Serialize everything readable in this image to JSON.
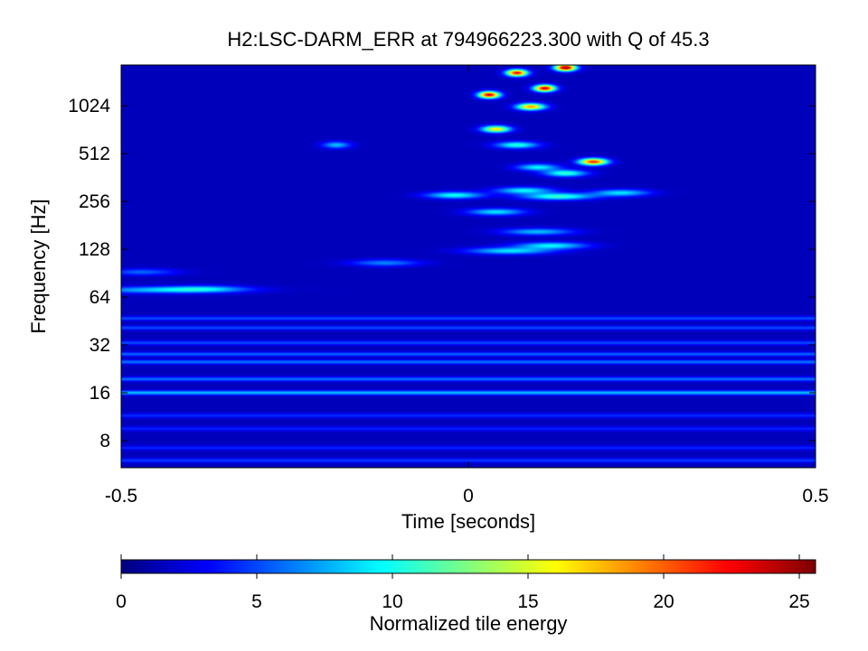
{
  "chart_data": {
    "type": "heatmap",
    "title": "H2:LSC-DARM_ERR at 794966223.300 with Q of 45.3",
    "xlabel": "Time [seconds]",
    "ylabel": "Frequency [Hz]",
    "x_ticks": [
      {
        "value": -0.5,
        "label": "-0.5"
      },
      {
        "value": 0,
        "label": "0"
      },
      {
        "value": 0.5,
        "label": "0.5"
      }
    ],
    "xlim": [
      -0.5,
      0.5
    ],
    "y_scale": "log2",
    "y_ticks": [
      {
        "value": 8,
        "label": "8"
      },
      {
        "value": 16,
        "label": "16"
      },
      {
        "value": 32,
        "label": "32"
      },
      {
        "value": 64,
        "label": "64"
      },
      {
        "value": 128,
        "label": "128"
      },
      {
        "value": 256,
        "label": "256"
      },
      {
        "value": 512,
        "label": "512"
      },
      {
        "value": 1024,
        "label": "1024"
      }
    ],
    "ylim": [
      5.4,
      1850
    ],
    "colorbar": {
      "label": "Normalized tile energy",
      "colormap": "jet",
      "range": [
        0,
        25.6
      ],
      "ticks": [
        {
          "value": 0,
          "label": "0"
        },
        {
          "value": 5,
          "label": "5"
        },
        {
          "value": 10,
          "label": "10"
        },
        {
          "value": 15,
          "label": "15"
        },
        {
          "value": 20,
          "label": "20"
        },
        {
          "value": 25,
          "label": "25"
        }
      ]
    },
    "background_energy": 1.5,
    "horizontal_lines": [
      {
        "freq": 6.0,
        "energy": 3.2
      },
      {
        "freq": 7.2,
        "energy": 2.6
      },
      {
        "freq": 9.5,
        "energy": 2.6
      },
      {
        "freq": 11.5,
        "energy": 2.8
      },
      {
        "freq": 16,
        "energy": 6.5
      },
      {
        "freq": 19.5,
        "energy": 4.5
      },
      {
        "freq": 25,
        "energy": 4.6
      },
      {
        "freq": 28,
        "energy": 4.2
      },
      {
        "freq": 33,
        "energy": 3.6
      },
      {
        "freq": 41,
        "energy": 3.6
      },
      {
        "freq": 47,
        "energy": 3.6
      }
    ],
    "features": [
      {
        "t": -0.45,
        "f": 71,
        "energy": 6.2,
        "dt": 0.11
      },
      {
        "t": -0.38,
        "f": 72,
        "energy": 5.0,
        "dt": 0.06
      },
      {
        "t": -0.47,
        "f": 92,
        "energy": 4.2,
        "dt": 0.05
      },
      {
        "t": -0.12,
        "f": 105,
        "energy": 5.0,
        "dt": 0.05
      },
      {
        "t": 0.06,
        "f": 125,
        "energy": 7.5,
        "dt": 0.06
      },
      {
        "t": 0.12,
        "f": 135,
        "energy": 8.0,
        "dt": 0.05
      },
      {
        "t": 0.1,
        "f": 165,
        "energy": 6.5,
        "dt": 0.05
      },
      {
        "t": 0.04,
        "f": 220,
        "energy": 7.5,
        "dt": 0.04
      },
      {
        "t": 0.13,
        "f": 275,
        "energy": 9.5,
        "dt": 0.05
      },
      {
        "t": 0.22,
        "f": 290,
        "energy": 7.5,
        "dt": 0.04
      },
      {
        "t": -0.02,
        "f": 280,
        "energy": 8.5,
        "dt": 0.04
      },
      {
        "t": 0.08,
        "f": 300,
        "energy": 8.0,
        "dt": 0.04
      },
      {
        "t": 0.14,
        "f": 385,
        "energy": 9.5,
        "dt": 0.03
      },
      {
        "t": 0.1,
        "f": 420,
        "energy": 8.0,
        "dt": 0.03
      },
      {
        "t": 0.18,
        "f": 455,
        "energy": 20.0,
        "dt": 0.02
      },
      {
        "t": -0.19,
        "f": 580,
        "energy": 6.5,
        "dt": 0.02
      },
      {
        "t": 0.07,
        "f": 580,
        "energy": 9.0,
        "dt": 0.03
      },
      {
        "t": 0.04,
        "f": 730,
        "energy": 15.0,
        "dt": 0.02
      },
      {
        "t": 0.09,
        "f": 1010,
        "energy": 17.0,
        "dt": 0.02
      },
      {
        "t": 0.03,
        "f": 1200,
        "energy": 22.0,
        "dt": 0.015
      },
      {
        "t": 0.11,
        "f": 1320,
        "energy": 22.0,
        "dt": 0.015
      },
      {
        "t": 0.07,
        "f": 1650,
        "energy": 21.0,
        "dt": 0.015
      },
      {
        "t": 0.14,
        "f": 1780,
        "energy": 24.0,
        "dt": 0.015
      }
    ]
  }
}
